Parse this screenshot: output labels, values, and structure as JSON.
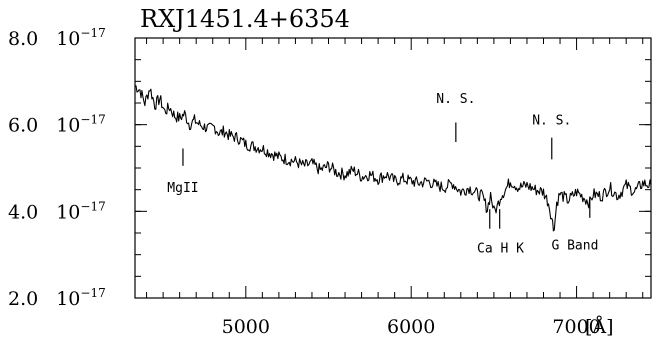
{
  "chart_data": {
    "type": "line",
    "title": "RXJ1451.4+6354",
    "xlabel": "",
    "ylabel": "",
    "x_unit": "[Å]",
    "xlim": [
      4330,
      7450
    ],
    "ylim": [
      2e-17,
      8e-17
    ],
    "x_ticks": [
      {
        "value": 5000,
        "label": "5000"
      },
      {
        "value": 6000,
        "label": "6000"
      },
      {
        "value": 7000,
        "label": "7000"
      }
    ],
    "y_ticks": [
      {
        "value": 2e-17,
        "mantissa": "2.0",
        "base": "10",
        "exponent": "−17"
      },
      {
        "value": 4e-17,
        "mantissa": "4.0",
        "base": "10",
        "exponent": "−17"
      },
      {
        "value": 6e-17,
        "mantissa": "6.0",
        "base": "10",
        "exponent": "−17"
      },
      {
        "value": 8e-17,
        "mantissa": "8.0",
        "base": "10",
        "exponent": "−17"
      }
    ],
    "grid": false,
    "series": [
      {
        "color": "#000000",
        "x": [
          4330,
          4360,
          4390,
          4420,
          4450,
          4480,
          4510,
          4540,
          4570,
          4600,
          4630,
          4660,
          4690,
          4720,
          4750,
          4780,
          4810,
          4840,
          4870,
          4900,
          4950,
          5000,
          5050,
          5100,
          5150,
          5200,
          5250,
          5300,
          5350,
          5400,
          5450,
          5500,
          5550,
          5600,
          5650,
          5700,
          5750,
          5800,
          5850,
          5900,
          5950,
          6000,
          6050,
          6100,
          6150,
          6200,
          6250,
          6300,
          6350,
          6400,
          6430,
          6460,
          6480,
          6500,
          6520,
          6540,
          6570,
          6600,
          6650,
          6700,
          6750,
          6800,
          6830,
          6850,
          6860,
          6870,
          6880,
          6900,
          6950,
          7000,
          7050,
          7080,
          7100,
          7150,
          7200,
          7250,
          7300,
          7350,
          7400,
          7450
        ],
        "y": [
          6.9e-17,
          6.8e-17,
          6.5e-17,
          6.85e-17,
          6.45e-17,
          6.6e-17,
          6.3e-17,
          6.4e-17,
          6.2e-17,
          6.15e-17,
          6.25e-17,
          6e-17,
          6.1e-17,
          6e-17,
          5.95e-17,
          5.9e-17,
          5.95e-17,
          5.8e-17,
          5.85e-17,
          5.75e-17,
          5.7e-17,
          5.55e-17,
          5.5e-17,
          5.45e-17,
          5.35e-17,
          5.25e-17,
          5.2e-17,
          5.15e-17,
          5.05e-17,
          5.1e-17,
          4.95e-17,
          5.05e-17,
          4.9e-17,
          4.85e-17,
          4.95e-17,
          4.8e-17,
          4.85e-17,
          4.75e-17,
          4.85e-17,
          4.7e-17,
          4.75e-17,
          4.7e-17,
          4.65e-17,
          4.7e-17,
          4.6e-17,
          4.55e-17,
          4.65e-17,
          4.45e-17,
          4.55e-17,
          4.4e-17,
          4.35e-17,
          4.05e-17,
          4.4e-17,
          4e-17,
          4.1e-17,
          4.35e-17,
          4.5e-17,
          4.7e-17,
          4.55e-17,
          4.6e-17,
          4.5e-17,
          4.45e-17,
          4.2e-17,
          3.85e-17,
          3.6e-17,
          3.8e-17,
          4.2e-17,
          4.4e-17,
          4.25e-17,
          4.45e-17,
          4.3e-17,
          4.2e-17,
          4.4e-17,
          4.35e-17,
          4.55e-17,
          4.35e-17,
          4.6e-17,
          4.45e-17,
          4.65e-17,
          4.6e-17
        ]
      }
    ],
    "annotations": [
      {
        "text": "MgII",
        "x": 4620,
        "y_text": 4.45e-17,
        "line_y": [
          5.05e-17,
          5.45e-17
        ],
        "line_above": true
      },
      {
        "text": "N. S.",
        "x": 6270,
        "y_text": 6.5e-17,
        "line_y": [
          5.6e-17,
          6.05e-17
        ],
        "line_above": false
      },
      {
        "text": "N. S.",
        "x": 6850,
        "y_text": 6e-17,
        "line_y": [
          5.2e-17,
          5.7e-17
        ],
        "line_above": false
      },
      {
        "text": "Ca  H  K",
        "x": 6540,
        "y_text": 3.05e-17,
        "line_y": [
          3.6e-17,
          4.05e-17
        ],
        "line_above": true,
        "lines_x": [
          6475,
          6535
        ]
      },
      {
        "text": "G  Band",
        "x": 6990,
        "y_text": 3.12e-17,
        "line_y": [
          3.85e-17,
          4.3e-17
        ],
        "line_above": true,
        "lines_x": [
          7080
        ]
      }
    ]
  }
}
